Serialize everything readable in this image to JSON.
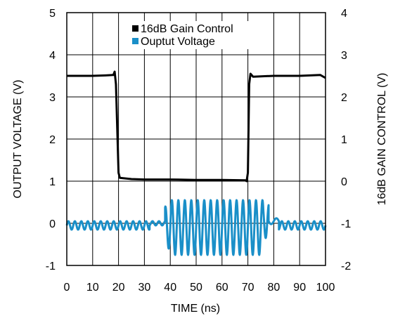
{
  "chart_data": {
    "type": "line",
    "title": "",
    "xlabel": "TIME (ns)",
    "ylabel_left": "OUTPUT VOLTAGE (V)",
    "ylabel_right": "16dB GAIN CONTROL (V)",
    "xlim": [
      0,
      100
    ],
    "ylim_left": [
      -1,
      5
    ],
    "ylim_right": [
      -2,
      4
    ],
    "x_ticks": [
      "0",
      "10",
      "20",
      "30",
      "40",
      "50",
      "60",
      "70",
      "80",
      "90",
      "100"
    ],
    "y_left_ticks": [
      "-1",
      "0",
      "1",
      "2",
      "3",
      "4",
      "5"
    ],
    "y_right_ticks": [
      "-2",
      "-1",
      "0",
      "1",
      "2",
      "3",
      "4"
    ],
    "grid": true,
    "legend_position": "top-center",
    "series": [
      {
        "name": "16dB Gain Control",
        "axis": "right",
        "color": "#000000",
        "points": [
          [
            0,
            2.5
          ],
          [
            5,
            2.5
          ],
          [
            10,
            2.5
          ],
          [
            15,
            2.51
          ],
          [
            18,
            2.52
          ],
          [
            18.5,
            2.6
          ],
          [
            19,
            2.3
          ],
          [
            20,
            0.2
          ],
          [
            20.5,
            0.08
          ],
          [
            25,
            0.05
          ],
          [
            30,
            0.04
          ],
          [
            40,
            0.04
          ],
          [
            50,
            0.03
          ],
          [
            60,
            0.03
          ],
          [
            69,
            0.02
          ],
          [
            69.5,
            0.0
          ],
          [
            70,
            0.2
          ],
          [
            70.5,
            2.3
          ],
          [
            71,
            2.55
          ],
          [
            72,
            2.48
          ],
          [
            80,
            2.5
          ],
          [
            90,
            2.5
          ],
          [
            98,
            2.52
          ],
          [
            100,
            2.45
          ]
        ]
      },
      {
        "name": "Ouptut Voltage",
        "axis": "left",
        "color": "#1a8fc8",
        "segments": [
          {
            "x_start": 0,
            "x_end": 32,
            "center": -0.05,
            "amplitude": 0.1,
            "period": 2.5
          },
          {
            "x_start": 32,
            "x_end": 38,
            "center": 0.0,
            "amplitude": 0.05,
            "period": 2.5
          },
          {
            "x_start": 38,
            "x_end": 40,
            "center": -0.1,
            "amplitude": 0.5,
            "period": 2.5
          },
          {
            "x_start": 40,
            "x_end": 76,
            "center": -0.1,
            "amplitude": 0.65,
            "period": 2.5
          },
          {
            "x_start": 76,
            "x_end": 78,
            "center": 0.05,
            "amplitude": 0.4,
            "period": 2.5
          },
          {
            "x_start": 78,
            "x_end": 82,
            "center": 0.05,
            "amplitude": 0.07,
            "period": 4
          },
          {
            "x_start": 82,
            "x_end": 100,
            "center": -0.05,
            "amplitude": 0.1,
            "period": 2.5
          }
        ]
      }
    ]
  }
}
